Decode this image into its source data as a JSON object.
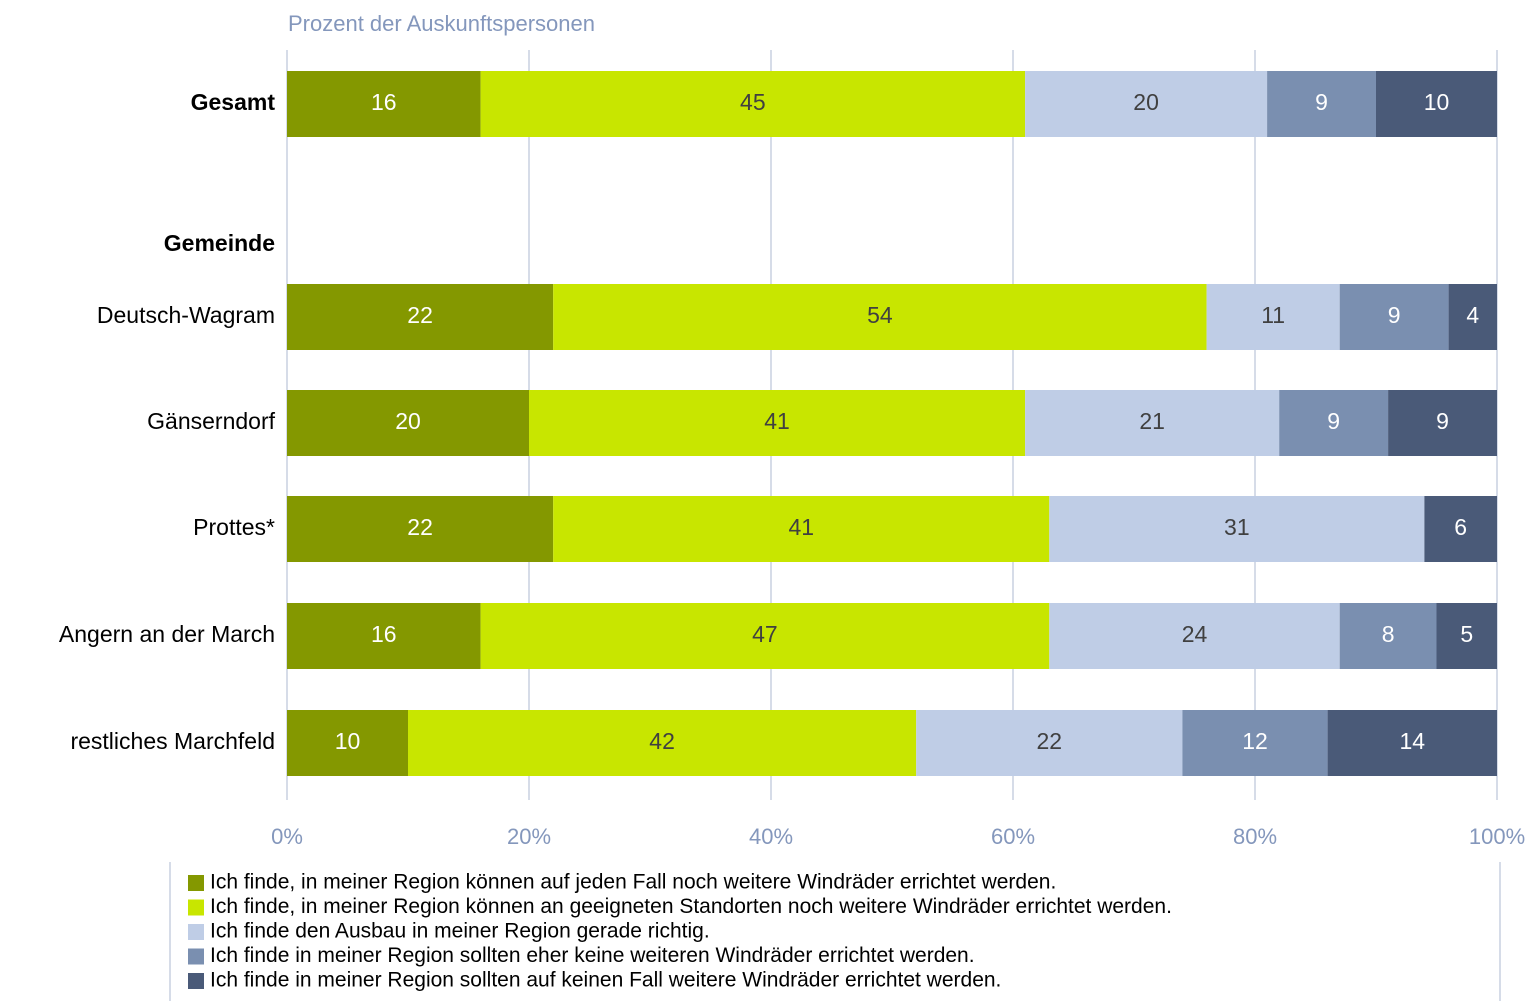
{
  "chart_data": {
    "type": "stacked_barh",
    "subtitle": "Prozent der Auskunftspersonen",
    "categories": [
      "Gesamt",
      "Gemeinde",
      "Deutsch-Wagram",
      "Gänserndorf",
      "Prottes*",
      "Angern an der March",
      "restliches Marchfeld"
    ],
    "series": [
      {
        "name": "Ich finde, in meiner Region können auf jeden Fall noch weitere Windräder errichtet werden.",
        "color": "#849800",
        "values": [
          16,
          null,
          22,
          20,
          22,
          16,
          10
        ]
      },
      {
        "name": "Ich finde, in meiner Region können an geeigneten Standorten noch weitere Windräder errichtet werden.",
        "color": "#c8e600",
        "values": [
          45,
          null,
          54,
          41,
          41,
          47,
          42
        ]
      },
      {
        "name": "Ich finde den Ausbau in meiner Region gerade richtig.",
        "color": "#bfcde6",
        "values": [
          20,
          null,
          11,
          21,
          31,
          24,
          22
        ]
      },
      {
        "name": "Ich finde in meiner Region sollten eher keine weiteren Windräder errichtet werden.",
        "color": "#7a8fb0",
        "values": [
          9,
          null,
          9,
          9,
          null,
          8,
          12
        ]
      },
      {
        "name": "Ich finde in meiner Region sollten auf keinen Fall weitere Windräder errichtet werden.",
        "color": "#4a5a78",
        "values": [
          10,
          null,
          4,
          9,
          6,
          5,
          14
        ]
      }
    ],
    "xlim": [
      0,
      100
    ],
    "xticks": [
      {
        "value": 0,
        "label": "0%"
      },
      {
        "value": 20,
        "label": "20%"
      },
      {
        "value": 40,
        "label": "40%"
      },
      {
        "value": 60,
        "label": "60%"
      },
      {
        "value": 80,
        "label": "80%"
      },
      {
        "value": 100,
        "label": "100%"
      }
    ],
    "grid": true
  }
}
